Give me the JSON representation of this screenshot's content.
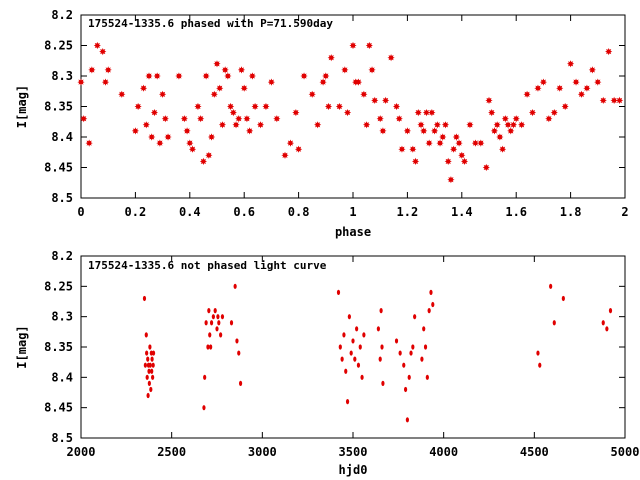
{
  "chart_data": [
    {
      "type": "scatter",
      "title": "175524-1335.6 phased with P=71.590day",
      "xlabel": "phase",
      "ylabel": "I[mag]",
      "xlim": [
        0,
        2
      ],
      "ylim": [
        8.5,
        8.2
      ],
      "y_inverted": true,
      "x_ticks": [
        0,
        0.2,
        0.4,
        0.6,
        0.8,
        1,
        1.2,
        1.4,
        1.6,
        1.8,
        2
      ],
      "x_tick_labels": [
        "0",
        "0.2",
        "0.4",
        "0.6",
        "0.8",
        "1",
        "1.2",
        "1.4",
        "1.6",
        "1.8",
        "2"
      ],
      "y_ticks": [
        8.2,
        8.25,
        8.3,
        8.35,
        8.4,
        8.45,
        8.5
      ],
      "y_tick_labels": [
        "8.2",
        "8.25",
        "8.3",
        "8.35",
        "8.4",
        "8.45",
        "8.5"
      ],
      "marker_color": "#e00000",
      "marker": "star",
      "series": [
        {
          "x": [
            0.0,
            0.01,
            0.03,
            0.04,
            0.06,
            0.08,
            0.09,
            0.1,
            0.15,
            0.2,
            0.21,
            0.23,
            0.24,
            0.25,
            0.26,
            0.27,
            0.28,
            0.29,
            0.3,
            0.31,
            0.32,
            0.36,
            0.38,
            0.39,
            0.4,
            0.41,
            0.43,
            0.44,
            0.45,
            0.46,
            0.47,
            0.48,
            0.49,
            0.5,
            0.51,
            0.52,
            0.53,
            0.54,
            0.55,
            0.56,
            0.57,
            0.58,
            0.59,
            0.6,
            0.61,
            0.62,
            0.63,
            0.64,
            0.66,
            0.68,
            0.7,
            0.72,
            0.75,
            0.77,
            0.79,
            0.8,
            0.82,
            0.85,
            0.87,
            0.89,
            0.9,
            0.91,
            0.92,
            0.95,
            0.97,
            0.98,
            1.0,
            1.01,
            1.02,
            1.04,
            1.05,
            1.06,
            1.07,
            1.08,
            1.1,
            1.11,
            1.12,
            1.14,
            1.16,
            1.17,
            1.18,
            1.2,
            1.22,
            1.23,
            1.24,
            1.25,
            1.26,
            1.27,
            1.28,
            1.29,
            1.3,
            1.31,
            1.32,
            1.33,
            1.34,
            1.35,
            1.36,
            1.37,
            1.38,
            1.39,
            1.4,
            1.41,
            1.43,
            1.45,
            1.47,
            1.49,
            1.5,
            1.51,
            1.52,
            1.53,
            1.54,
            1.55,
            1.56,
            1.57,
            1.58,
            1.59,
            1.6,
            1.62,
            1.64,
            1.66,
            1.68,
            1.7,
            1.72,
            1.74,
            1.76,
            1.78,
            1.8,
            1.82,
            1.84,
            1.86,
            1.88,
            1.9,
            1.92,
            1.94,
            1.96,
            1.98
          ],
          "y": [
            8.31,
            8.37,
            8.41,
            8.29,
            8.25,
            8.26,
            8.31,
            8.29,
            8.33,
            8.39,
            8.35,
            8.32,
            8.38,
            8.3,
            8.4,
            8.36,
            8.3,
            8.41,
            8.33,
            8.37,
            8.4,
            8.3,
            8.37,
            8.39,
            8.41,
            8.42,
            8.35,
            8.37,
            8.44,
            8.3,
            8.43,
            8.4,
            8.33,
            8.28,
            8.32,
            8.38,
            8.29,
            8.3,
            8.35,
            8.36,
            8.38,
            8.37,
            8.29,
            8.32,
            8.37,
            8.39,
            8.3,
            8.35,
            8.38,
            8.35,
            8.31,
            8.37,
            8.43,
            8.41,
            8.36,
            8.42,
            8.3,
            8.33,
            8.38,
            8.31,
            8.3,
            8.35,
            8.27,
            8.35,
            8.29,
            8.36,
            8.25,
            8.31,
            8.31,
            8.33,
            8.38,
            8.25,
            8.29,
            8.34,
            8.37,
            8.39,
            8.34,
            8.27,
            8.35,
            8.37,
            8.42,
            8.39,
            8.42,
            8.44,
            8.36,
            8.38,
            8.39,
            8.36,
            8.41,
            8.36,
            8.39,
            8.38,
            8.41,
            8.4,
            8.38,
            8.44,
            8.47,
            8.42,
            8.4,
            8.41,
            8.43,
            8.44,
            8.38,
            8.41,
            8.41,
            8.45,
            8.34,
            8.36,
            8.39,
            8.38,
            8.4,
            8.42,
            8.37,
            8.38,
            8.39,
            8.38,
            8.37,
            8.38,
            8.33,
            8.36,
            8.32,
            8.31,
            8.37,
            8.36,
            8.32,
            8.35,
            8.28,
            8.31,
            8.33,
            8.32,
            8.29,
            8.31,
            8.34,
            8.26,
            8.34,
            8.34
          ]
        }
      ]
    },
    {
      "type": "scatter",
      "title": "175524-1335.6 not phased light curve",
      "xlabel": "hjd0",
      "ylabel": "I[mag]",
      "xlim": [
        2000,
        5000
      ],
      "ylim": [
        8.5,
        8.2
      ],
      "y_inverted": true,
      "x_ticks": [
        2000,
        2500,
        3000,
        3500,
        4000,
        4500,
        5000
      ],
      "x_tick_labels": [
        "2000",
        "2500",
        "3000",
        "3500",
        "4000",
        "4500",
        "5000"
      ],
      "y_ticks": [
        8.2,
        8.25,
        8.3,
        8.35,
        8.4,
        8.45,
        8.5
      ],
      "y_tick_labels": [
        "8.2",
        "8.25",
        "8.3",
        "8.35",
        "8.4",
        "8.45",
        "8.5"
      ],
      "marker_color": "#e00000",
      "marker": "dot",
      "series": [
        {
          "x": [
            2350,
            2355,
            2360,
            2362,
            2365,
            2368,
            2370,
            2372,
            2375,
            2377,
            2380,
            2382,
            2385,
            2388,
            2390,
            2392,
            2395,
            2398,
            2400,
            2678,
            2682,
            2690,
            2700,
            2705,
            2710,
            2715,
            2720,
            2730,
            2740,
            2750,
            2755,
            2760,
            2770,
            2780,
            2830,
            2850,
            2860,
            2870,
            2880,
            3420,
            3430,
            3440,
            3450,
            3460,
            3470,
            3480,
            3490,
            3500,
            3510,
            3520,
            3530,
            3540,
            3550,
            3560,
            3640,
            3650,
            3655,
            3660,
            3665,
            3740,
            3760,
            3780,
            3790,
            3800,
            3810,
            3820,
            3830,
            3840,
            3880,
            3890,
            3900,
            3910,
            3920,
            3930,
            3940,
            4520,
            4530,
            4590,
            4610,
            4660,
            4880,
            4900,
            4920
          ],
          "y": [
            8.27,
            8.38,
            8.33,
            8.36,
            8.4,
            8.37,
            8.43,
            8.38,
            8.39,
            8.41,
            8.35,
            8.38,
            8.42,
            8.36,
            8.39,
            8.37,
            8.4,
            8.38,
            8.36,
            8.45,
            8.4,
            8.31,
            8.35,
            8.29,
            8.33,
            8.35,
            8.31,
            8.3,
            8.29,
            8.32,
            8.3,
            8.31,
            8.33,
            8.3,
            8.31,
            8.25,
            8.34,
            8.36,
            8.41,
            8.26,
            8.35,
            8.37,
            8.33,
            8.39,
            8.44,
            8.3,
            8.36,
            8.34,
            8.37,
            8.32,
            8.38,
            8.35,
            8.4,
            8.33,
            8.32,
            8.37,
            8.29,
            8.35,
            8.41,
            8.34,
            8.36,
            8.38,
            8.42,
            8.47,
            8.4,
            8.36,
            8.35,
            8.3,
            8.37,
            8.32,
            8.35,
            8.4,
            8.29,
            8.26,
            8.28,
            8.36,
            8.38,
            8.25,
            8.31,
            8.27,
            8.31,
            8.32,
            8.29
          ]
        }
      ]
    }
  ]
}
